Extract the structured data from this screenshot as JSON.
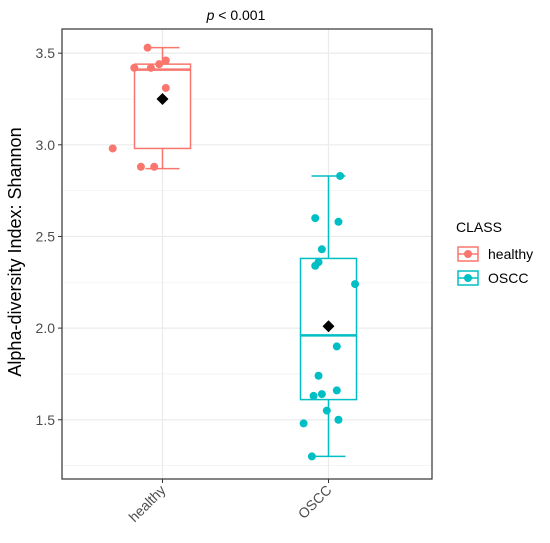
{
  "chart_data": {
    "type": "box",
    "annotation": {
      "italic": "p",
      "rest": " < 0.001"
    },
    "ylabel": "Alpha-diversity Index: Shannon",
    "xlabel": "",
    "categories": [
      "healthy",
      "OSCC"
    ],
    "ylim": [
      1.25,
      3.6
    ],
    "yticks": [
      "1.5",
      "2.0",
      "2.5",
      "3.0",
      "3.5"
    ],
    "grid": true,
    "legend": {
      "title": "CLASS",
      "position": "right",
      "entries": [
        {
          "label": "healthy",
          "color": "#F8766D"
        },
        {
          "label": "OSCC",
          "color": "#00BFC4"
        }
      ]
    },
    "groups": [
      {
        "name": "healthy",
        "color": "#F8766D",
        "whisker_low": 2.87,
        "q1": 2.98,
        "median": 3.41,
        "q3": 3.44,
        "whisker_high": 3.53,
        "mean": 3.25,
        "points": [
          {
            "x": 0.91,
            "y": 3.53
          },
          {
            "x": 0.83,
            "y": 3.42
          },
          {
            "x": 0.93,
            "y": 3.42
          },
          {
            "x": 0.98,
            "y": 3.44
          },
          {
            "x": 1.02,
            "y": 3.46
          },
          {
            "x": 1.02,
            "y": 3.31
          },
          {
            "x": 0.7,
            "y": 2.98
          },
          {
            "x": 0.87,
            "y": 2.88
          },
          {
            "x": 0.95,
            "y": 2.88
          }
        ]
      },
      {
        "name": "OSCC",
        "color": "#00BFC4",
        "whisker_low": 1.3,
        "q1": 1.61,
        "median": 1.96,
        "q3": 2.38,
        "whisker_high": 2.83,
        "mean": 2.01,
        "points": [
          {
            "x": 2.07,
            "y": 2.83
          },
          {
            "x": 1.92,
            "y": 2.6
          },
          {
            "x": 2.06,
            "y": 2.58
          },
          {
            "x": 1.96,
            "y": 2.43
          },
          {
            "x": 1.92,
            "y": 2.34
          },
          {
            "x": 1.94,
            "y": 2.36
          },
          {
            "x": 2.16,
            "y": 2.24
          },
          {
            "x": 2.05,
            "y": 1.9
          },
          {
            "x": 1.94,
            "y": 1.74
          },
          {
            "x": 1.96,
            "y": 1.64
          },
          {
            "x": 2.05,
            "y": 1.66
          },
          {
            "x": 1.91,
            "y": 1.63
          },
          {
            "x": 1.99,
            "y": 1.55
          },
          {
            "x": 2.06,
            "y": 1.5
          },
          {
            "x": 1.85,
            "y": 1.48
          },
          {
            "x": 1.9,
            "y": 1.3
          }
        ]
      }
    ]
  }
}
